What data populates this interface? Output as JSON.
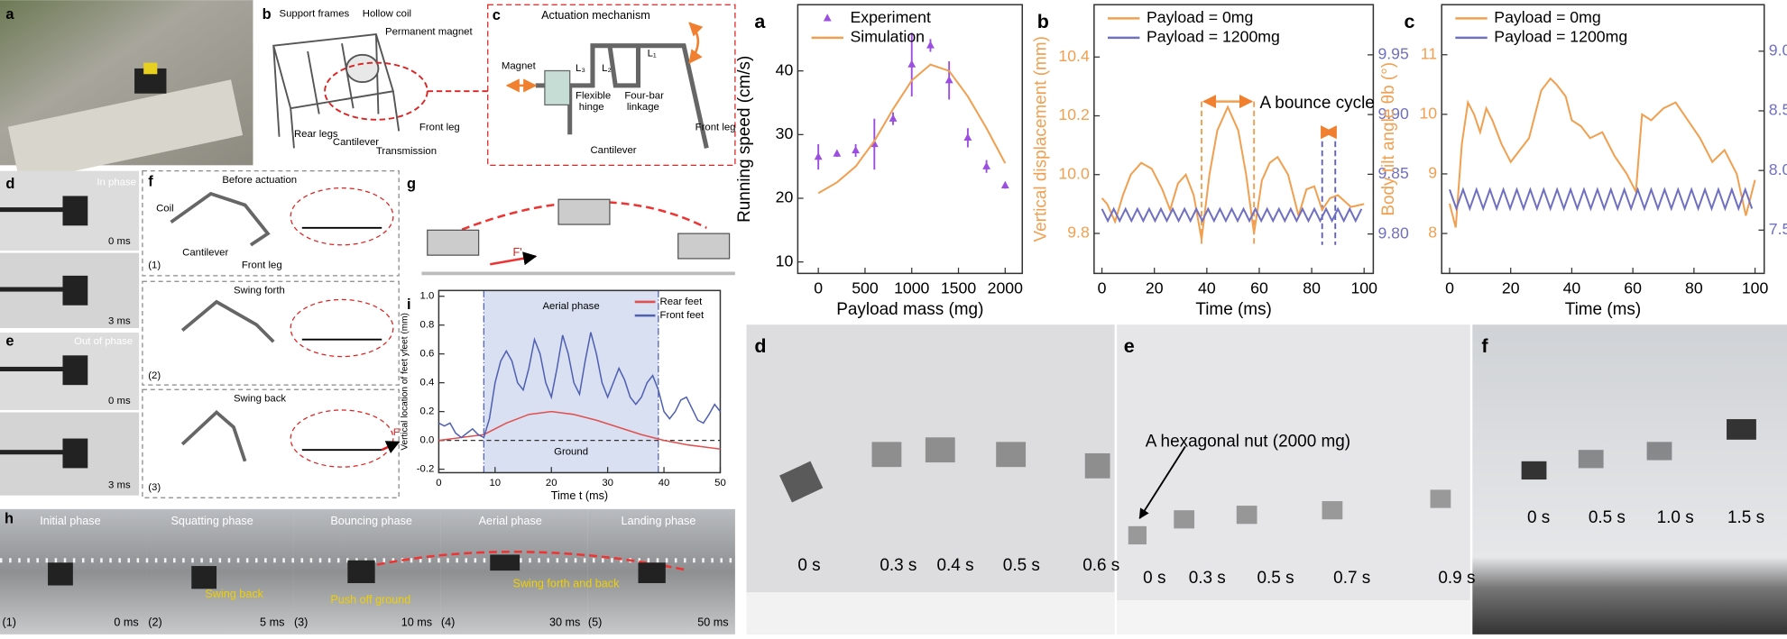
{
  "panel_labels": [
    "a",
    "b",
    "c",
    "d",
    "e",
    "f",
    "g",
    "h",
    "i",
    "a",
    "b",
    "c",
    "d",
    "e",
    "f"
  ],
  "left": {
    "b": [
      "Support frames",
      "Hollow coil",
      "Permanent magnet",
      "Rear legs",
      "Cantilever",
      "Transmission",
      "Front leg"
    ],
    "c": [
      "Actuation mechanism",
      "Magnet",
      "L₃",
      "L₂",
      "L₁",
      "Flexible",
      "hinge",
      "Four-bar",
      "linkage",
      "Cantilever",
      "Front leg"
    ],
    "d": [
      "In phase",
      "0 ms",
      "3 ms"
    ],
    "e": [
      "Out of phase",
      "0 ms",
      "3 ms"
    ],
    "f": [
      "Before actuation",
      "Coil",
      "Cantilever",
      "Front leg",
      "(1)",
      "Swing forth",
      "(2)",
      "Swing back",
      "(3)",
      "F'"
    ],
    "g": [
      "F'"
    ],
    "h": {
      "phases": [
        "Initial phase",
        "Squatting phase",
        "Bouncing phase",
        "Aerial phase",
        "Landing phase"
      ],
      "steps": [
        "(1)",
        "(2)",
        "(3)",
        "(4)",
        "(5)"
      ],
      "times": [
        "0 ms",
        "5 ms",
        "10 ms",
        "30 ms",
        "50 ms"
      ],
      "notes": [
        "Swing back",
        "Push off ground",
        "Swing forth and back"
      ]
    }
  },
  "right": {
    "d": [
      "0 s",
      "0.3 s",
      "0.4 s",
      "0.5 s",
      "0.6 s"
    ],
    "e": [
      "A hexagonal nut (2000 mg)",
      "0 s",
      "0.3 s",
      "0.5 s",
      "0.7 s",
      "0.9 s"
    ],
    "f": [
      "0 s",
      "0.5 s",
      "1.0 s",
      "1.5 s"
    ]
  },
  "chart_data": [
    {
      "type": "line",
      "xlabel": "Payload mass (mg)",
      "ylabel": "Running speed (cm/s)",
      "xlim": [
        -220,
        2183
      ],
      "ylim": [
        8.2,
        50.4
      ],
      "xticks": [
        0,
        500,
        1000,
        1500,
        2000
      ],
      "yticks": [
        10,
        20,
        30,
        40
      ],
      "legend": "upper left",
      "series": [
        {
          "name": "Experiment",
          "type": "scatter",
          "color": "#9b4fe0",
          "x": [
            0,
            200,
            400,
            600,
            800,
            1000,
            1200,
            1400,
            1600,
            1800,
            2000
          ],
          "values": [
            26.5,
            27,
            27.5,
            28.5,
            32.5,
            41,
            44,
            38.5,
            29.5,
            25,
            22
          ],
          "errors": [
            2,
            0.5,
            1,
            4,
            1,
            5,
            1,
            3,
            1.5,
            1,
            0.5
          ]
        },
        {
          "name": "Simulation",
          "type": "line",
          "color": "#f0a050",
          "x": [
            0,
            200,
            400,
            600,
            800,
            1000,
            1200,
            1400,
            1600,
            1800,
            2000
          ],
          "values": [
            20.8,
            22.5,
            25,
            29,
            34,
            38.5,
            41,
            40,
            36,
            31,
            25.5
          ]
        }
      ]
    },
    {
      "type": "line",
      "xlabel": "Time (ms)",
      "ylabel": "Vertical displacement (mm)",
      "xlim": [
        -3,
        103.5
      ],
      "ylim": [
        9.664,
        10.578
      ],
      "y2lim": [
        9.767,
        9.992
      ],
      "xticks": [
        0,
        20,
        40,
        60,
        80,
        100
      ],
      "yticks": [
        9.8,
        {
          "value": 10,
          "label": "10.0"
        },
        10.2,
        10.4
      ],
      "y2ticks": [
        {
          "value": 9.8,
          "label": "9.80"
        },
        9.85,
        {
          "value": 9.9,
          "label": "9.90"
        },
        9.95
      ],
      "legend": "upper left",
      "annotation": "A bounce cycle",
      "spans": [
        {
          "range": [
            38,
            58
          ],
          "color": "#f0a050"
        },
        {
          "range": [
            84,
            89
          ],
          "color": "#6060c0"
        }
      ],
      "series": [
        {
          "name": "Payload = 0mg",
          "type": "line",
          "color": "#f0a050",
          "x": [
            0,
            2,
            5,
            8,
            11,
            15,
            19,
            23,
            26,
            29,
            32,
            35,
            38,
            41,
            44,
            48,
            52,
            55,
            58,
            61,
            64,
            67,
            71,
            75,
            78,
            81,
            84,
            87,
            90,
            95,
            100
          ],
          "values": [
            9.92,
            9.9,
            9.84,
            9.93,
            10.0,
            10.04,
            10.02,
            9.95,
            9.88,
            9.97,
            10.0,
            9.93,
            9.78,
            10.0,
            10.15,
            10.23,
            10.15,
            10.0,
            9.8,
            9.98,
            10.04,
            10.06,
            10.0,
            9.86,
            9.95,
            9.96,
            9.88,
            9.92,
            9.93,
            9.89,
            9.9
          ]
        },
        {
          "name": "Payload = 1200mg",
          "type": "line",
          "axis": "y2",
          "color": "#7070c0",
          "x": [
            0,
            2.25,
            4.5,
            6.75,
            9,
            11.25,
            13.5,
            15.75,
            18,
            20.25,
            22.5,
            24.75,
            27,
            29.25,
            31.5,
            33.75,
            36,
            38.25,
            40.5,
            42.75,
            45,
            47.25,
            49.5,
            51.75,
            54,
            56.25,
            58.5,
            60.75,
            63,
            65.25,
            67.5,
            69.75,
            72,
            74.25,
            76.5,
            78.75,
            81,
            83.25,
            85.5,
            87.75,
            90,
            92.25,
            94.5,
            96.75,
            99
          ],
          "values": [
            9.821,
            9.811,
            9.821,
            9.811,
            9.821,
            9.811,
            9.821,
            9.811,
            9.821,
            9.811,
            9.821,
            9.811,
            9.821,
            9.811,
            9.821,
            9.811,
            9.821,
            9.811,
            9.821,
            9.811,
            9.821,
            9.811,
            9.821,
            9.811,
            9.821,
            9.811,
            9.821,
            9.811,
            9.821,
            9.811,
            9.821,
            9.811,
            9.821,
            9.811,
            9.821,
            9.811,
            9.821,
            9.811,
            9.821,
            9.811,
            9.821,
            9.811,
            9.821,
            9.811,
            9.821
          ]
        }
      ]
    },
    {
      "type": "line",
      "xlabel": "Time (ms)",
      "ylabel": "Body tilt angle θb (°)",
      "xlim": [
        -2.6,
        103
      ],
      "ylim": [
        7.33,
        11.84
      ],
      "y2lim": [
        7.137,
        9.39
      ],
      "xticks": [
        0,
        20,
        40,
        60,
        80,
        100
      ],
      "yticks": [
        8,
        9,
        10,
        11
      ],
      "y2ticks": [
        7.5,
        {
          "value": 8,
          "label": "8.0"
        },
        8.5,
        {
          "value": 9,
          "label": "9.0"
        }
      ],
      "legend": "upper left",
      "series": [
        {
          "name": "Payload = 0mg",
          "type": "line",
          "color": "#f0a050",
          "x": [
            0,
            2,
            4,
            6,
            8,
            10,
            12,
            14,
            17,
            20,
            23,
            26,
            30,
            33,
            35,
            38,
            40,
            43,
            46,
            50,
            54,
            58,
            61,
            63,
            66,
            70,
            74,
            78,
            82,
            86,
            90,
            94,
            97,
            100
          ],
          "values": [
            8.5,
            8.1,
            9.5,
            10.2,
            10.0,
            9.7,
            10.1,
            9.9,
            9.5,
            9.2,
            9.4,
            9.6,
            10.4,
            10.6,
            10.5,
            10.3,
            9.9,
            9.8,
            9.6,
            9.7,
            9.3,
            9.0,
            8.7,
            10.0,
            9.9,
            10.1,
            10.2,
            9.9,
            9.6,
            9.2,
            9.4,
            9.0,
            8.3,
            8.9
          ]
        },
        {
          "name": "Payload = 1200mg",
          "type": "line",
          "axis": "y2",
          "color": "#7070c0",
          "x": [
            0,
            2.2,
            4.4,
            6.6,
            8.8,
            11,
            13.2,
            15.4,
            17.6,
            19.8,
            22,
            24.2,
            26.4,
            28.6,
            30.8,
            33,
            35.2,
            37.4,
            39.6,
            41.8,
            44,
            46.2,
            48.4,
            50.6,
            52.8,
            55,
            57.2,
            59.4,
            61.6,
            63.8,
            66,
            68.2,
            70.4,
            72.6,
            74.8,
            77,
            79.2,
            81.4,
            83.6,
            85.8,
            88,
            90.2,
            92.4,
            94.6,
            96.8,
            99
          ],
          "values": [
            7.84,
            7.68,
            7.84,
            7.68,
            7.84,
            7.68,
            7.84,
            7.68,
            7.84,
            7.68,
            7.84,
            7.68,
            7.84,
            7.68,
            7.84,
            7.68,
            7.84,
            7.68,
            7.84,
            7.68,
            7.84,
            7.68,
            7.84,
            7.68,
            7.84,
            7.68,
            7.84,
            7.68,
            7.84,
            7.68,
            7.84,
            7.68,
            7.84,
            7.68,
            7.84,
            7.68,
            7.84,
            7.68,
            7.84,
            7.68,
            7.84,
            7.68,
            7.84,
            7.68,
            7.84,
            7.68
          ]
        }
      ]
    },
    {
      "type": "line",
      "xlabel": "Time t (ms)",
      "ylabel": "Vertical location of feet yfeet (mm)",
      "xlim": [
        0,
        50
      ],
      "ylim": [
        -0.224,
        1.04
      ],
      "xticks": [
        0,
        10,
        20,
        30,
        40,
        50
      ],
      "yticks": [
        -0.2,
        {
          "value": 0,
          "label": "0.0"
        },
        0.2,
        0.4,
        0.6,
        0.8,
        {
          "value": 1,
          "label": "1.0"
        }
      ],
      "legend": "upper right",
      "annotations": [
        "Aerial phase",
        "Ground"
      ],
      "shade": [
        8,
        39
      ],
      "hline": 0,
      "series": [
        {
          "name": "Rear feet",
          "type": "line",
          "color": "#e05050",
          "x": [
            0,
            4,
            8,
            12,
            16,
            20,
            24,
            28,
            32,
            36,
            40,
            44,
            48,
            50
          ],
          "values": [
            0,
            0.02,
            0.04,
            0.12,
            0.18,
            0.2,
            0.18,
            0.14,
            0.09,
            0.04,
            0.0,
            -0.03,
            -0.05,
            -0.06
          ]
        },
        {
          "name": "Front feet",
          "type": "line",
          "color": "#5060b0",
          "x": [
            0,
            1,
            2,
            3,
            4,
            5,
            6,
            7,
            8,
            9,
            10,
            11,
            12,
            13,
            14,
            15,
            16,
            17,
            18,
            19,
            20,
            21,
            22,
            23,
            24,
            25,
            26,
            27,
            28,
            29,
            30,
            31,
            32,
            33,
            34,
            35,
            36,
            37,
            38,
            39,
            40,
            41,
            42,
            43,
            44,
            45,
            46,
            47,
            48,
            49,
            50
          ],
          "values": [
            0.12,
            0.1,
            0.12,
            0.05,
            0.02,
            0.05,
            0.08,
            0.04,
            0.02,
            0.15,
            0.4,
            0.55,
            0.62,
            0.55,
            0.4,
            0.35,
            0.5,
            0.7,
            0.6,
            0.4,
            0.3,
            0.5,
            0.73,
            0.6,
            0.4,
            0.32,
            0.55,
            0.75,
            0.6,
            0.4,
            0.3,
            0.4,
            0.5,
            0.42,
            0.3,
            0.25,
            0.3,
            0.4,
            0.45,
            0.35,
            0.2,
            0.15,
            0.2,
            0.28,
            0.3,
            0.22,
            0.14,
            0.12,
            0.18,
            0.25,
            0.2
          ]
        }
      ]
    }
  ]
}
